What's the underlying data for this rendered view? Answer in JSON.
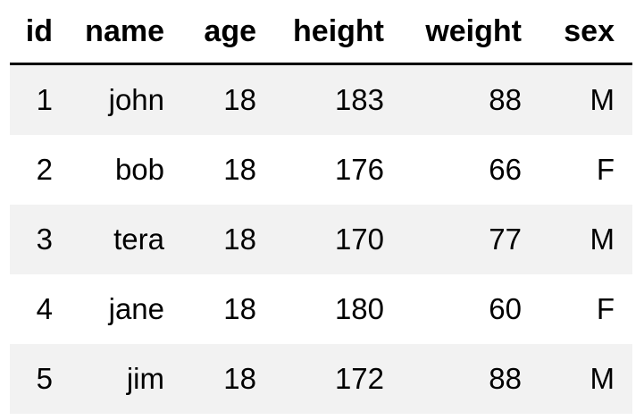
{
  "table": {
    "columns": [
      "id",
      "name",
      "age",
      "height",
      "weight",
      "sex"
    ],
    "rows": [
      [
        "1",
        "john",
        "18",
        "183",
        "88",
        "M"
      ],
      [
        "2",
        "bob",
        "18",
        "176",
        "66",
        "F"
      ],
      [
        "3",
        "tera",
        "18",
        "170",
        "77",
        "M"
      ],
      [
        "4",
        "jane",
        "18",
        "180",
        "60",
        "F"
      ],
      [
        "5",
        "jim",
        "18",
        "172",
        "88",
        "M"
      ]
    ]
  },
  "colors": {
    "header_border": "#000000",
    "stripe": "#f2f2f2",
    "background": "#ffffff"
  }
}
